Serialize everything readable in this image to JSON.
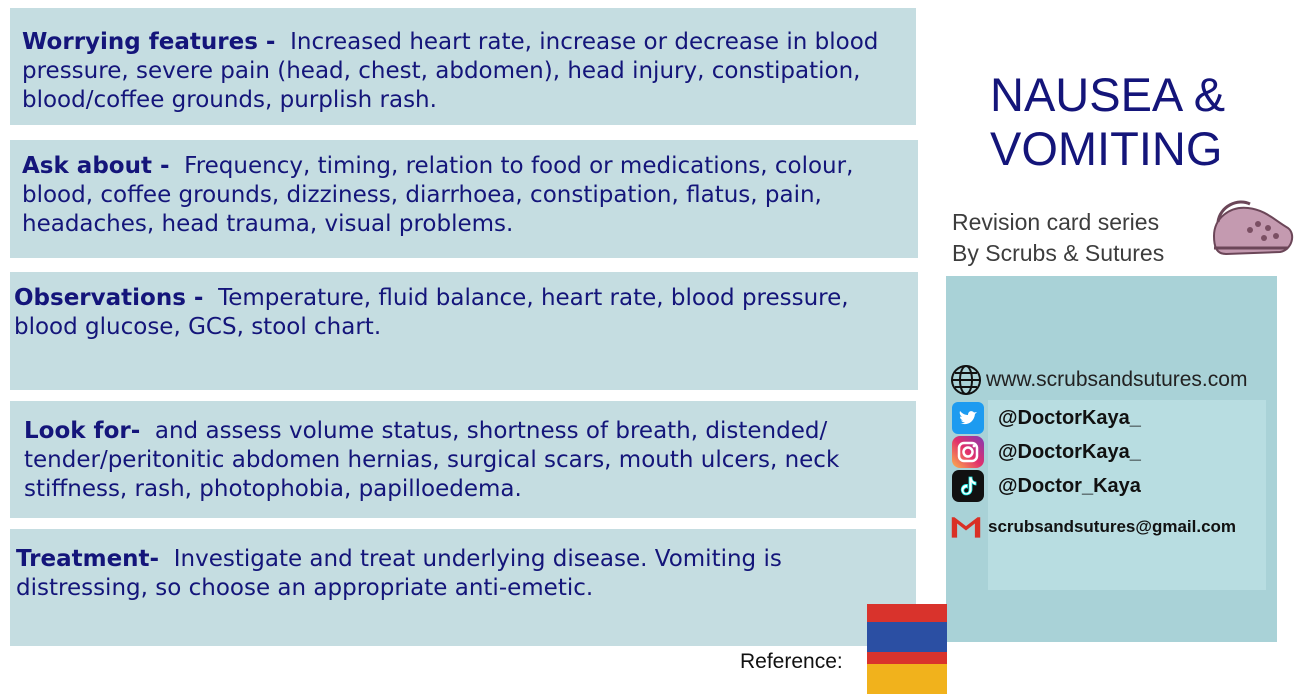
{
  "cards": [
    {
      "heading": "Worrying features -",
      "body": "Increased heart rate, increase or decrease in blood pressure, severe pain (head, chest, abdomen), head injury, constipation, blood/coffee grounds, purplish rash."
    },
    {
      "heading": "Ask about -",
      "body": "Frequency, timing, relation to food or medications, colour, blood, coffee grounds, dizziness, diarrhoea, constipation, flatus, pain, headaches, head trauma, visual problems."
    },
    {
      "heading": "Observations -",
      "body": "Temperature, fluid balance, heart rate, blood pressure, blood glucose, GCS, stool chart."
    },
    {
      "heading": "Look for-",
      "body": "and assess volume status, shortness of breath, distended/ tender/peritonitic abdomen hernias, surgical scars, mouth ulcers, neck stiffness, rash, photophobia, papilloedema."
    },
    {
      "heading": "Treatment-",
      "body": "Investigate and treat underlying disease. Vomiting is distressing, so choose an appropriate anti-emetic."
    }
  ],
  "title_line1": "NAUSEA &",
  "title_line2": "VOMITING",
  "series_line1": "Revision card series",
  "series_line2": "By Scrubs & Sutures",
  "contact": {
    "website": "www.scrubsandsutures.com",
    "twitter": "@DoctorKaya_",
    "instagram": "@DoctorKaya_",
    "tiktok": "@Doctor_Kaya",
    "email": "scrubsandsutures@gmail.com"
  },
  "reference_label": "Reference:",
  "colors": {
    "card_bg": "#c5dde1",
    "text": "#14157a",
    "panel_bg": "#a9d2d7"
  }
}
